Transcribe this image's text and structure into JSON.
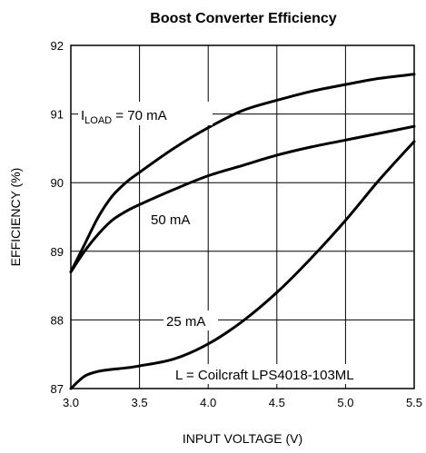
{
  "chart_data": {
    "type": "line",
    "title": "Boost Converter Efficiency",
    "xlabel": "INPUT VOLTAGE (V)",
    "ylabel": "EFFICIENCY (%)",
    "xlim": [
      3.0,
      5.5
    ],
    "ylim": [
      87,
      92
    ],
    "x_ticks": [
      "3.0",
      "3.5",
      "4.0",
      "4.5",
      "5.0",
      "5.5"
    ],
    "y_ticks": [
      "87",
      "88",
      "89",
      "90",
      "91",
      "92"
    ],
    "grid": true,
    "series": [
      {
        "name_prefix": "I",
        "name_sub": "LOAD",
        "name_suffix": " = 70 mA",
        "x": [
          3.0,
          3.1,
          3.2,
          3.3,
          3.4,
          3.5,
          3.75,
          4.0,
          4.25,
          4.5,
          4.75,
          5.0,
          5.25,
          5.5
        ],
        "y": [
          88.7,
          89.1,
          89.5,
          89.8,
          90.0,
          90.15,
          90.5,
          90.8,
          91.05,
          91.2,
          91.33,
          91.43,
          91.52,
          91.58
        ]
      },
      {
        "name": "50 mA",
        "x": [
          3.0,
          3.1,
          3.2,
          3.3,
          3.4,
          3.5,
          3.75,
          4.0,
          4.25,
          4.5,
          4.75,
          5.0,
          5.25,
          5.5
        ],
        "y": [
          88.7,
          89.0,
          89.25,
          89.45,
          89.58,
          89.68,
          89.9,
          90.1,
          90.25,
          90.4,
          90.52,
          90.62,
          90.72,
          90.82
        ]
      },
      {
        "name": "25 mA",
        "x": [
          3.0,
          3.1,
          3.2,
          3.3,
          3.4,
          3.5,
          3.75,
          4.0,
          4.25,
          4.5,
          4.75,
          5.0,
          5.25,
          5.5
        ],
        "y": [
          87.0,
          87.18,
          87.25,
          87.28,
          87.3,
          87.33,
          87.43,
          87.65,
          87.98,
          88.4,
          88.9,
          89.45,
          90.05,
          90.6
        ]
      }
    ],
    "annotation": "L = Coilcraft LPS4018-103ML"
  }
}
